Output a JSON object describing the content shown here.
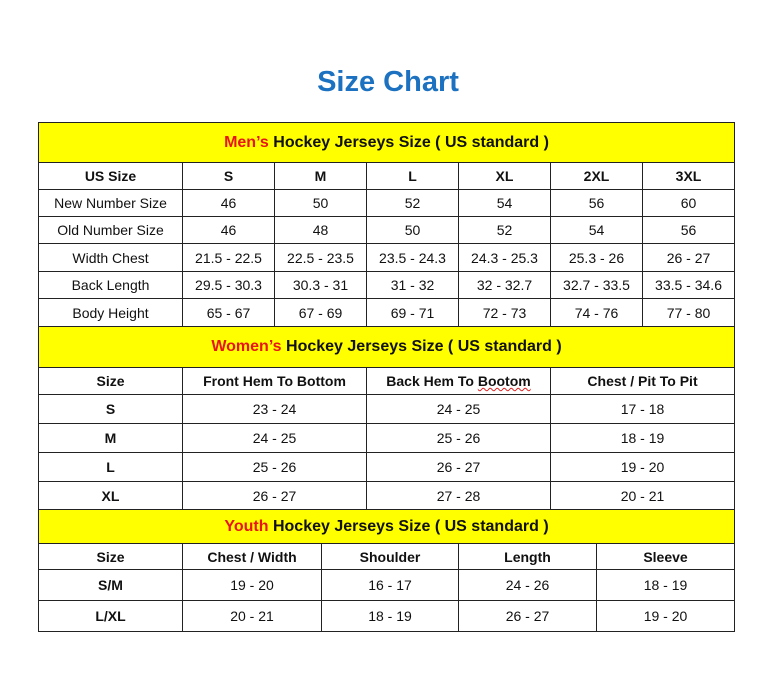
{
  "title": "Size Chart",
  "men": {
    "banner_accent": "Men’s",
    "banner_rest": " Hockey Jerseys Size ( US standard )",
    "header": [
      "US Size",
      "S",
      "M",
      "L",
      "XL",
      "2XL",
      "3XL"
    ],
    "rows": [
      [
        "New Number Size",
        "46",
        "50",
        "52",
        "54",
        "56",
        "60"
      ],
      [
        "Old Number Size",
        "46",
        "48",
        "50",
        "52",
        "54",
        "56"
      ],
      [
        "Width Chest",
        "21.5 - 22.5",
        "22.5 - 23.5",
        "23.5 - 24.3",
        "24.3 - 25.3",
        "25.3 - 26",
        "26 - 27"
      ],
      [
        "Back Length",
        "29.5 - 30.3",
        "30.3 - 31",
        "31 - 32",
        "32 - 32.7",
        "32.7 - 33.5",
        "33.5 - 34.6"
      ],
      [
        "Body Height",
        "65 - 67",
        "67 - 69",
        "69 - 71",
        "72 - 73",
        "74 - 76",
        "77 - 80"
      ]
    ]
  },
  "women": {
    "banner_accent": "Women’s",
    "banner_rest": " Hockey Jerseys Size ( US standard )",
    "header": [
      "Size",
      "Front Hem To Bottom",
      "Back Hem To Bootom",
      "Chest / Pit To Pit"
    ],
    "rows": [
      [
        "S",
        "23 - 24",
        "24 - 25",
        "17 - 18"
      ],
      [
        "M",
        "24 - 25",
        "25 - 26",
        "18 - 19"
      ],
      [
        "L",
        "25 - 26",
        "26 - 27",
        "19 - 20"
      ],
      [
        "XL",
        "26 - 27",
        "27 - 28",
        "20 - 21"
      ]
    ]
  },
  "youth": {
    "banner_accent": "Youth",
    "banner_rest": " Hockey Jerseys Size ( US standard )",
    "header": [
      "Size",
      "Chest / Width",
      "Shoulder",
      "Length",
      "Sleeve"
    ],
    "rows": [
      [
        "S/M",
        "19 - 20",
        "16 - 17",
        "24 - 26",
        "18 - 19"
      ],
      [
        "L/XL",
        "20 - 21",
        "18 - 19",
        "26 - 27",
        "19 - 20"
      ]
    ]
  },
  "colors": {
    "title": "#1c72c0",
    "banner": "#ffff00",
    "accent": "#e8141a"
  }
}
